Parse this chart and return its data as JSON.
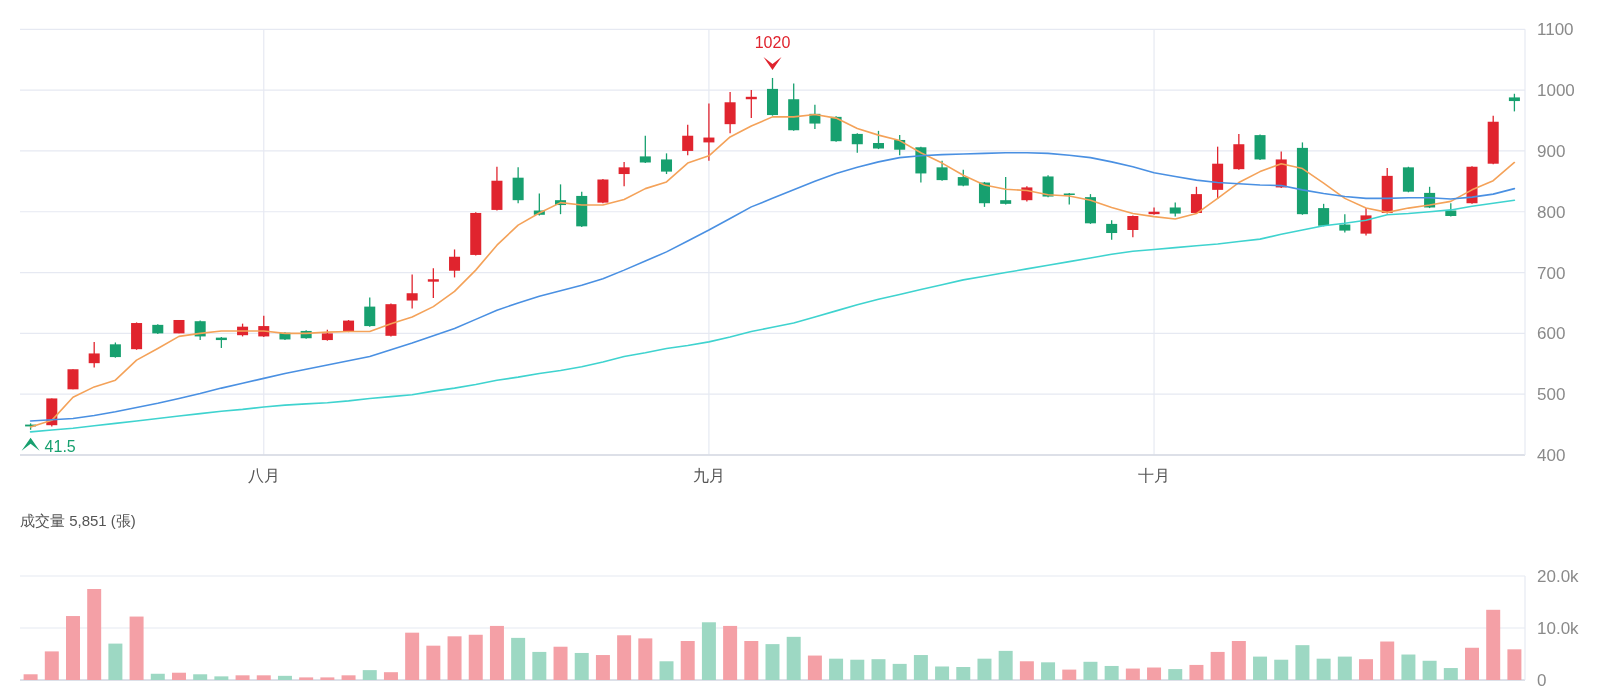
{
  "chart_data": [
    {
      "type": "candlestick",
      "categories": [
        null,
        null,
        null,
        null,
        null,
        null,
        null,
        null,
        null,
        null,
        null,
        "八月",
        null,
        null,
        null,
        null,
        null,
        null,
        null,
        null,
        null,
        null,
        null,
        null,
        null,
        null,
        null,
        null,
        null,
        null,
        null,
        null,
        "九月",
        null,
        null,
        null,
        null,
        null,
        null,
        null,
        null,
        null,
        null,
        null,
        null,
        null,
        null,
        null,
        null,
        null,
        null,
        null,
        null,
        "十月",
        null,
        null,
        null,
        null,
        null,
        null,
        null,
        null,
        null,
        null,
        null,
        null,
        null,
        null,
        null,
        null,
        null
      ],
      "ohlc": [
        [
          450,
          452,
          441.5,
          447
        ],
        [
          449,
          493,
          447,
          493
        ],
        [
          508,
          541,
          508,
          541
        ],
        [
          551,
          586,
          544,
          567
        ],
        [
          582,
          585,
          560,
          561
        ],
        [
          574,
          618,
          573,
          617
        ],
        [
          614,
          615,
          599,
          600
        ],
        [
          600,
          622,
          600,
          622
        ],
        [
          620,
          621,
          589,
          595
        ],
        [
          593,
          594,
          576,
          589
        ],
        [
          597,
          616,
          595,
          611
        ],
        [
          595,
          629,
          594,
          612
        ],
        [
          601,
          602,
          589,
          590
        ],
        [
          604,
          605,
          591,
          592
        ],
        [
          589,
          606,
          588,
          600
        ],
        [
          603,
          622,
          602,
          621
        ],
        [
          644,
          659,
          611,
          612
        ],
        [
          596,
          649,
          595,
          648
        ],
        [
          654,
          697,
          641,
          666
        ],
        [
          685,
          707,
          658,
          689
        ],
        [
          703,
          738,
          692,
          726
        ],
        [
          729,
          799,
          728,
          798
        ],
        [
          803,
          874,
          802,
          851
        ],
        [
          856,
          873,
          814,
          819
        ],
        [
          802,
          830,
          794,
          795
        ],
        [
          819,
          845,
          796,
          811
        ],
        [
          826,
          833,
          775,
          776
        ],
        [
          815,
          854,
          814,
          853
        ],
        [
          862,
          882,
          842,
          873
        ],
        [
          891,
          925,
          880,
          881
        ],
        [
          886,
          896,
          862,
          866
        ],
        [
          900,
          943,
          893,
          925
        ],
        [
          914,
          978,
          884,
          922
        ],
        [
          944,
          997,
          929,
          980
        ],
        [
          985,
          1000,
          954,
          989
        ],
        [
          1002,
          1020,
          958,
          959
        ],
        [
          985,
          1011,
          933,
          934
        ],
        [
          961,
          976,
          936,
          945
        ],
        [
          956,
          957,
          915,
          916
        ],
        [
          928,
          929,
          897,
          911
        ],
        [
          913,
          933,
          903,
          904
        ],
        [
          918,
          926,
          893,
          902
        ],
        [
          906,
          907,
          848,
          863
        ],
        [
          873,
          884,
          851,
          852
        ],
        [
          857,
          869,
          842,
          843
        ],
        [
          848,
          849,
          808,
          814
        ],
        [
          819,
          857,
          812,
          813
        ],
        [
          819,
          842,
          817,
          840
        ],
        [
          858,
          860,
          824,
          825
        ],
        [
          830,
          831,
          812,
          828
        ],
        [
          824,
          829,
          780,
          781
        ],
        [
          780,
          786,
          754,
          765
        ],
        [
          770,
          794,
          758,
          793
        ],
        [
          796,
          807,
          795,
          800
        ],
        [
          807,
          815,
          792,
          797
        ],
        [
          798,
          841,
          797,
          829
        ],
        [
          836,
          907,
          821,
          879
        ],
        [
          870,
          928,
          869,
          911
        ],
        [
          926,
          927,
          885,
          886
        ],
        [
          840,
          899,
          839,
          886
        ],
        [
          905,
          914,
          795,
          796
        ],
        [
          806,
          813,
          776,
          777
        ],
        [
          779,
          796,
          766,
          769
        ],
        [
          764,
          806,
          761,
          794
        ],
        [
          798,
          872,
          797,
          859
        ],
        [
          873,
          874,
          832,
          833
        ],
        [
          831,
          841,
          806,
          807
        ],
        [
          802,
          814,
          792,
          793
        ],
        [
          814,
          875,
          813,
          874
        ],
        [
          879,
          958,
          878,
          948
        ],
        [
          988,
          994,
          965,
          982
        ]
      ],
      "colors": [
        "#17a06f",
        "#e0242e",
        "#e0242e",
        "#e0242e",
        "#17a06f",
        "#e0242e",
        "#17a06f",
        "#e0242e",
        "#17a06f",
        "#17a06f",
        "#e0242e",
        "#e0242e",
        "#17a06f",
        "#17a06f",
        "#e0242e",
        "#e0242e",
        "#17a06f",
        "#e0242e",
        "#e0242e",
        "#e0242e",
        "#e0242e",
        "#e0242e",
        "#e0242e",
        "#17a06f",
        "#17a06f",
        "#17a06f",
        "#17a06f",
        "#e0242e",
        "#e0242e",
        "#17a06f",
        "#17a06f",
        "#e0242e",
        "#e0242e",
        "#e0242e",
        "#e0242e",
        "#17a06f",
        "#17a06f",
        "#17a06f",
        "#17a06f",
        "#17a06f",
        "#17a06f",
        "#17a06f",
        "#17a06f",
        "#17a06f",
        "#17a06f",
        "#17a06f",
        "#17a06f",
        "#e0242e",
        "#17a06f",
        "#17a06f",
        "#17a06f",
        "#17a06f",
        "#e0242e",
        "#e0242e",
        "#17a06f",
        "#e0242e",
        "#e0242e",
        "#e0242e",
        "#17a06f",
        "#e0242e",
        "#17a06f",
        "#17a06f",
        "#17a06f",
        "#e0242e",
        "#e0242e",
        "#17a06f",
        "#17a06f",
        "#17a06f",
        "#e0242e",
        "#e0242e",
        "#17a06f"
      ],
      "series": [
        {
          "type": "line",
          "color": "#f4a259",
          "values": [
            446,
            457,
            495,
            512,
            523,
            556,
            575,
            595,
            600,
            604,
            604,
            604,
            600,
            600,
            602,
            603,
            603,
            616,
            627,
            644,
            669,
            704,
            745,
            778,
            798,
            815,
            811,
            811,
            820,
            838,
            849,
            880,
            892,
            923,
            941,
            956,
            956,
            960,
            954,
            937,
            926,
            917,
            897,
            880,
            860,
            844,
            837,
            835,
            828,
            826,
            819,
            807,
            797,
            792,
            788,
            797,
            822,
            848,
            866,
            879,
            871,
            847,
            822,
            806,
            799,
            806,
            811,
            817,
            836,
            851,
            881
          ]
        },
        {
          "type": "line",
          "color": "#4a90e2",
          "values": [
            456,
            458,
            460,
            465,
            471,
            478,
            485,
            493,
            501,
            510,
            518,
            526,
            534,
            541,
            548,
            555,
            562,
            573,
            584,
            596,
            608,
            623,
            638,
            650,
            661,
            670,
            679,
            690,
            704,
            719,
            734,
            752,
            770,
            789,
            808,
            822,
            836,
            850,
            863,
            873,
            882,
            889,
            892,
            894,
            895,
            896,
            897,
            897,
            896,
            893,
            889,
            882,
            874,
            864,
            858,
            852,
            848,
            846,
            844,
            843,
            836,
            830,
            825,
            822,
            822,
            823,
            823,
            821,
            824,
            829,
            838
          ]
        },
        {
          "type": "line",
          "color": "#3fd3cf",
          "values": [
            438,
            441,
            444,
            448,
            452,
            456,
            460,
            464,
            468,
            472,
            475,
            479,
            482,
            484,
            486,
            489,
            493,
            496,
            499,
            505,
            510,
            516,
            523,
            528,
            534,
            539,
            545,
            553,
            562,
            568,
            575,
            580,
            586,
            594,
            603,
            610,
            617,
            627,
            637,
            647,
            656,
            664,
            672,
            680,
            688,
            694,
            700,
            706,
            712,
            718,
            724,
            730,
            735,
            738,
            741,
            744,
            747,
            751,
            755,
            763,
            770,
            777,
            781,
            786,
            795,
            797,
            800,
            803,
            809,
            814,
            819
          ]
        }
      ],
      "ylim": [
        400,
        1100
      ],
      "yticks": [
        400,
        500,
        600,
        700,
        800,
        900,
        1000,
        1100
      ],
      "grid": true,
      "annotations": [
        {
          "text": "1020",
          "y": 1020
        },
        {
          "text": "41.5",
          "y": 441.5
        }
      ]
    },
    {
      "type": "bar",
      "title": "成交量  5,851 (張)",
      "categories": [
        null,
        null,
        null,
        null,
        null,
        null,
        null,
        null,
        null,
        null,
        null,
        null,
        null,
        null,
        null,
        null,
        null,
        null,
        null,
        null,
        null,
        null,
        null,
        null,
        null,
        null,
        null,
        null,
        null,
        null,
        null,
        null,
        null,
        null,
        null,
        null,
        null,
        null,
        null,
        null,
        null,
        null,
        null,
        null,
        null,
        null,
        null,
        null,
        null,
        null,
        null,
        null,
        null,
        null,
        null,
        null,
        null,
        null,
        null,
        null,
        null,
        null,
        null,
        null,
        null,
        null,
        null,
        null,
        null,
        null,
        null
      ],
      "values": [
        1100,
        5500,
        12300,
        17500,
        7000,
        12200,
        1200,
        1400,
        1100,
        700,
        900,
        900,
        800,
        500,
        500,
        900,
        1900,
        1500,
        9100,
        6600,
        8400,
        8700,
        10400,
        8100,
        5400,
        6400,
        5200,
        4800,
        8600,
        8000,
        3600,
        7500,
        11100,
        10400,
        7500,
        6900,
        8300,
        4700,
        4100,
        3900,
        4000,
        3100,
        4800,
        2600,
        2500,
        4100,
        5600,
        3600,
        3400,
        2000,
        3500,
        2700,
        2200,
        2400,
        2100,
        2900,
        5400,
        7500,
        4500,
        3900,
        6700,
        4100,
        4500,
        4000,
        7400,
        4900,
        3700,
        2300,
        6200,
        13500,
        5900
      ],
      "colors": [
        "#f4a0a6",
        "#f4a0a6",
        "#f4a0a6",
        "#f4a0a6",
        "#9dd8c3",
        "#f4a0a6",
        "#9dd8c3",
        "#f4a0a6",
        "#9dd8c3",
        "#9dd8c3",
        "#f4a0a6",
        "#f4a0a6",
        "#9dd8c3",
        "#f4a0a6",
        "#f4a0a6",
        "#f4a0a6",
        "#9dd8c3",
        "#f4a0a6",
        "#f4a0a6",
        "#f4a0a6",
        "#f4a0a6",
        "#f4a0a6",
        "#f4a0a6",
        "#9dd8c3",
        "#9dd8c3",
        "#f4a0a6",
        "#9dd8c3",
        "#f4a0a6",
        "#f4a0a6",
        "#f4a0a6",
        "#9dd8c3",
        "#f4a0a6",
        "#9dd8c3",
        "#f4a0a6",
        "#f4a0a6",
        "#9dd8c3",
        "#9dd8c3",
        "#f4a0a6",
        "#9dd8c3",
        "#9dd8c3",
        "#9dd8c3",
        "#9dd8c3",
        "#9dd8c3",
        "#9dd8c3",
        "#9dd8c3",
        "#9dd8c3",
        "#9dd8c3",
        "#f4a0a6",
        "#9dd8c3",
        "#f4a0a6",
        "#9dd8c3",
        "#9dd8c3",
        "#f4a0a6",
        "#f4a0a6",
        "#9dd8c3",
        "#f4a0a6",
        "#f4a0a6",
        "#f4a0a6",
        "#9dd8c3",
        "#9dd8c3",
        "#9dd8c3",
        "#9dd8c3",
        "#9dd8c3",
        "#f4a0a6",
        "#f4a0a6",
        "#9dd8c3",
        "#9dd8c3",
        "#9dd8c3",
        "#f4a0a6",
        "#f4a0a6",
        "#f4a0a6"
      ],
      "ylim": [
        0,
        20000
      ],
      "yticks": [
        {
          "value": 0,
          "label": "0"
        },
        {
          "value": 10000,
          "label": "10.0k"
        },
        {
          "value": 20000,
          "label": "20.0k"
        }
      ],
      "grid": "y"
    }
  ]
}
